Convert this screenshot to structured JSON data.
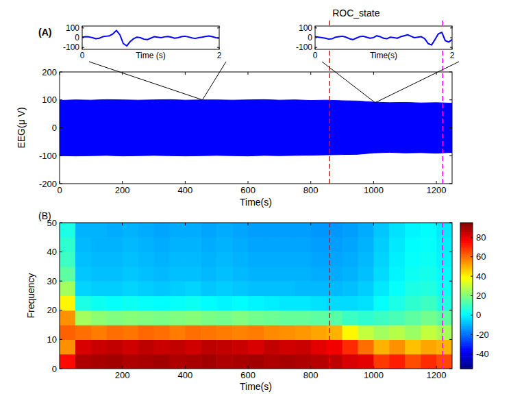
{
  "chart_data": [
    {
      "type": "area",
      "label": "(A)",
      "xlabel": "Time(s)",
      "ylabel": "EEG(μ V)",
      "x": [
        0,
        50,
        100,
        150,
        200,
        250,
        300,
        350,
        400,
        450,
        500,
        550,
        600,
        650,
        700,
        750,
        800,
        850,
        900,
        950,
        1000,
        1050,
        1100,
        1150,
        1200,
        1250
      ],
      "upper": [
        98,
        100,
        99,
        101,
        100,
        99,
        100,
        101,
        99,
        100,
        100,
        99,
        100,
        101,
        99,
        100,
        98,
        99,
        97,
        96,
        92,
        90,
        91,
        89,
        90,
        88
      ],
      "lower": [
        -100,
        -101,
        -100,
        -99,
        -101,
        -100,
        -99,
        -100,
        -101,
        -100,
        -99,
        -100,
        -101,
        -99,
        -100,
        -99,
        -98,
        -97,
        -96,
        -95,
        -90,
        -88,
        -90,
        -89,
        -91,
        -88
      ],
      "color": "#0000ff",
      "xlim": [
        0,
        1250
      ],
      "xticks": [
        0,
        200,
        400,
        600,
        800,
        1000,
        1200
      ],
      "ylim": [
        -200,
        200
      ],
      "yticks": [
        -200,
        -100,
        0,
        100,
        200
      ],
      "annotations": [
        {
          "x": 860,
          "color": "#ff0000",
          "line_style": "dashed",
          "text": "ROC_state"
        },
        {
          "x": 1220,
          "color": "#ff00ff",
          "line_style": "dashed"
        }
      ]
    },
    {
      "type": "line",
      "xlabel": "Time (s)",
      "x": [
        0,
        0.05,
        0.1,
        0.15,
        0.2,
        0.25,
        0.3,
        0.35,
        0.4,
        0.45,
        0.5,
        0.55,
        0.6,
        0.65,
        0.7,
        0.75,
        0.8,
        0.85,
        0.9,
        0.95,
        1,
        1.05,
        1.1,
        1.15,
        1.2,
        1.25,
        1.3,
        1.35,
        1.4,
        1.45,
        1.5,
        1.55,
        1.6,
        1.65,
        1.7,
        1.75,
        1.8,
        1.85,
        1.9,
        1.95,
        2
      ],
      "values": [
        5,
        10,
        8,
        0,
        -10,
        -5,
        10,
        15,
        20,
        40,
        75,
        30,
        -60,
        -85,
        -40,
        -10,
        5,
        0,
        -15,
        -20,
        -5,
        10,
        5,
        0,
        8,
        12,
        5,
        -5,
        0,
        10,
        15,
        8,
        -2,
        -8,
        0,
        5,
        12,
        18,
        10,
        0,
        -5
      ],
      "color": "#0000ff",
      "xlim": [
        0,
        2
      ],
      "xticks": [
        0,
        2
      ],
      "ylim": [
        -120,
        120
      ],
      "yticks": [
        -100,
        0,
        100
      ],
      "source": {
        "x": 455,
        "y": 100
      }
    },
    {
      "type": "line",
      "xlabel": "Time(s)",
      "x": [
        0,
        0.05,
        0.1,
        0.15,
        0.2,
        0.25,
        0.3,
        0.35,
        0.4,
        0.45,
        0.5,
        0.55,
        0.6,
        0.65,
        0.7,
        0.75,
        0.8,
        0.85,
        0.9,
        0.95,
        1,
        1.05,
        1.1,
        1.15,
        1.2,
        1.25,
        1.3,
        1.35,
        1.4,
        1.45,
        1.5,
        1.55,
        1.6,
        1.65,
        1.7,
        1.75,
        1.8,
        1.85,
        1.9,
        1.95,
        2
      ],
      "values": [
        10,
        5,
        0,
        -5,
        -15,
        -10,
        5,
        10,
        15,
        5,
        -10,
        -20,
        -5,
        10,
        15,
        5,
        -5,
        0,
        20,
        10,
        -5,
        -10,
        5,
        0,
        -5,
        10,
        20,
        30,
        15,
        0,
        5,
        10,
        -10,
        -60,
        -75,
        -20,
        40,
        55,
        -30,
        -45,
        -20
      ],
      "color": "#0000ff",
      "xlim": [
        0,
        2
      ],
      "xticks": [
        0,
        2
      ],
      "ylim": [
        -120,
        120
      ],
      "yticks": [
        -100,
        0,
        100
      ],
      "source": {
        "x": 1005,
        "y": 90
      }
    },
    {
      "type": "heatmap",
      "label": "(B)",
      "xlabel": "Time(s)",
      "ylabel": "Frequency",
      "x_edges": [
        0,
        50,
        100,
        150,
        200,
        250,
        300,
        350,
        400,
        450,
        500,
        550,
        600,
        650,
        700,
        750,
        800,
        850,
        900,
        950,
        1000,
        1050,
        1100,
        1150,
        1200,
        1250
      ],
      "y_edges": [
        0,
        5,
        10,
        15,
        20,
        25,
        30,
        35,
        40,
        45,
        50
      ],
      "cells": [
        [
          75,
          88,
          89,
          90,
          88,
          89,
          90,
          88,
          89,
          90,
          88,
          89,
          90,
          88,
          89,
          88,
          87,
          86,
          82,
          80,
          68,
          72,
          65,
          70,
          66
        ],
        [
          55,
          82,
          84,
          85,
          83,
          86,
          84,
          85,
          83,
          86,
          85,
          84,
          82,
          85,
          83,
          84,
          80,
          78,
          70,
          60,
          50,
          55,
          48,
          52,
          50
        ],
        [
          62,
          60,
          58,
          60,
          59,
          61,
          60,
          58,
          60,
          59,
          58,
          57,
          58,
          56,
          55,
          54,
          52,
          50,
          40,
          30,
          25,
          28,
          24,
          30,
          26
        ],
        [
          55,
          25,
          22,
          20,
          21,
          20,
          19,
          20,
          21,
          19,
          18,
          20,
          18,
          17,
          16,
          16,
          15,
          14,
          10,
          8,
          10,
          12,
          15,
          18,
          15
        ],
        [
          40,
          5,
          3,
          2,
          3,
          2,
          1,
          2,
          3,
          1,
          0,
          1,
          0,
          -1,
          -2,
          -2,
          -3,
          -4,
          -4,
          -3,
          2,
          5,
          8,
          10,
          6
        ],
        [
          25,
          -5,
          -6,
          -6,
          -5,
          -6,
          -7,
          -6,
          -5,
          -7,
          -6,
          -7,
          -8,
          -8,
          -8,
          -9,
          -9,
          -9,
          -8,
          -6,
          -2,
          2,
          5,
          6,
          3
        ],
        [
          15,
          -7,
          -8,
          -8,
          -7,
          -8,
          -9,
          -8,
          -8,
          -9,
          -8,
          -9,
          -10,
          -10,
          -10,
          -10,
          -11,
          -11,
          -10,
          -8,
          -4,
          0,
          3,
          4,
          1
        ],
        [
          10,
          -8,
          -9,
          -9,
          -8,
          -9,
          -10,
          -9,
          -9,
          -10,
          -9,
          -10,
          -11,
          -11,
          -11,
          -11,
          -12,
          -12,
          -11,
          -9,
          -5,
          -1,
          2,
          3,
          0
        ],
        [
          8,
          -9,
          -10,
          -10,
          -9,
          -10,
          -11,
          -10,
          -10,
          -11,
          -10,
          -11,
          -12,
          -12,
          -12,
          -12,
          -13,
          -13,
          -12,
          -10,
          -6,
          -2,
          1,
          2,
          -1
        ],
        [
          5,
          -10,
          -10,
          -11,
          -10,
          -11,
          -12,
          -11,
          -11,
          -12,
          -11,
          -12,
          -13,
          -13,
          -13,
          -13,
          -14,
          -14,
          -13,
          -11,
          -7,
          -3,
          0,
          1,
          -2
        ]
      ],
      "xlim": [
        0,
        1250
      ],
      "xticks": [
        200,
        400,
        600,
        800,
        1000,
        1200
      ],
      "ylim": [
        0,
        50
      ],
      "yticks": [
        0,
        10,
        20,
        30,
        40,
        50
      ],
      "colorbar": {
        "range": [
          -55,
          95
        ],
        "ticks": [
          -40,
          -20,
          0,
          20,
          40,
          60,
          80
        ]
      }
    }
  ]
}
